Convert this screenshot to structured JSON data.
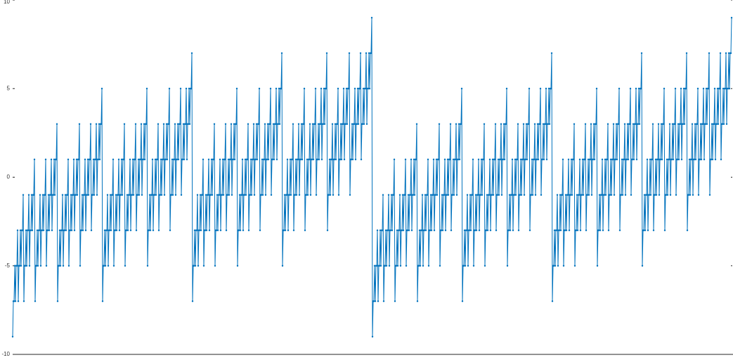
{
  "chart_data": {
    "type": "line",
    "color": "#0072bd",
    "markers": true,
    "xlim": [
      0,
      1023
    ],
    "ylim": [
      -10,
      10
    ],
    "yticks": [
      -10,
      -5,
      0,
      5,
      10
    ],
    "values": [
      -9,
      -7,
      -7,
      -5,
      -7,
      -5,
      -5,
      -3,
      -7,
      -5,
      -5,
      -3,
      -5,
      -3,
      -3,
      -1,
      -7,
      -5,
      -5,
      -3,
      -5,
      -3,
      -3,
      -1,
      -5,
      -3,
      -3,
      -1,
      -3,
      -1,
      -1,
      1,
      -7,
      -5,
      -5,
      -3,
      -5,
      -3,
      -3,
      -1,
      -5,
      -3,
      -3,
      -1,
      -3,
      -1,
      -1,
      1,
      -5,
      -3,
      -3,
      -1,
      -3,
      -1,
      -1,
      1,
      -3,
      -1,
      -1,
      1,
      -1,
      1,
      1,
      3,
      -7,
      -5,
      -5,
      -3,
      -5,
      -3,
      -3,
      -1,
      -5,
      -3,
      -3,
      -1,
      -3,
      -1,
      -1,
      1,
      -5,
      -3,
      -3,
      -1,
      -3,
      -1,
      -1,
      1,
      -3,
      -1,
      -1,
      1,
      -1,
      1,
      1,
      3,
      -5,
      -3,
      -3,
      -1,
      -3,
      -1,
      -1,
      1,
      -3,
      -1,
      -1,
      1,
      -1,
      1,
      1,
      3,
      -3,
      -1,
      -1,
      1,
      -1,
      1,
      1,
      3,
      -1,
      1,
      1,
      3,
      1,
      3,
      3,
      5,
      -7,
      -5,
      -5,
      -3,
      -5,
      -3,
      -3,
      -1,
      -5,
      -3,
      -3,
      -1,
      -3,
      -1,
      -1,
      1,
      -5,
      -3,
      -3,
      -1,
      -3,
      -1,
      -1,
      1,
      -3,
      -1,
      -1,
      1,
      -1,
      1,
      1,
      3,
      -5,
      -3,
      -3,
      -1,
      -3,
      -1,
      -1,
      1,
      -3,
      -1,
      -1,
      1,
      -1,
      1,
      1,
      3,
      -3,
      -1,
      -1,
      1,
      -1,
      1,
      1,
      3,
      -1,
      1,
      1,
      3,
      1,
      3,
      3,
      5,
      -5,
      -3,
      -3,
      -1,
      -3,
      -1,
      -1,
      1,
      -3,
      -1,
      -1,
      1,
      -1,
      1,
      1,
      3,
      -3,
      -1,
      -1,
      1,
      -1,
      1,
      1,
      3,
      -1,
      1,
      1,
      3,
      1,
      3,
      3,
      5,
      -3,
      -1,
      -1,
      1,
      -1,
      1,
      1,
      3,
      -1,
      1,
      1,
      3,
      1,
      3,
      3,
      5,
      -1,
      1,
      1,
      3,
      1,
      3,
      3,
      5,
      1,
      3,
      3,
      5,
      3,
      5,
      5,
      7,
      -7,
      -5,
      -5,
      -3,
      -5,
      -3,
      -3,
      -1,
      -5,
      -3,
      -3,
      -1,
      -3,
      -1,
      -1,
      1,
      -5,
      -3,
      -3,
      -1,
      -3,
      -1,
      -1,
      1,
      -3,
      -1,
      -1,
      1,
      -1,
      1,
      1,
      3,
      -5,
      -3,
      -3,
      -1,
      -3,
      -1,
      -1,
      1,
      -3,
      -1,
      -1,
      1,
      -1,
      1,
      1,
      3,
      -3,
      -1,
      -1,
      1,
      -1,
      1,
      1,
      3,
      -1,
      1,
      1,
      3,
      1,
      3,
      3,
      5,
      -5,
      -3,
      -3,
      -1,
      -3,
      -1,
      -1,
      1,
      -3,
      -1,
      -1,
      1,
      -1,
      1,
      1,
      3,
      -3,
      -1,
      -1,
      1,
      -1,
      1,
      1,
      3,
      -1,
      1,
      1,
      3,
      1,
      3,
      3,
      5,
      -3,
      -1,
      -1,
      1,
      -1,
      1,
      1,
      3,
      -1,
      1,
      1,
      3,
      1,
      3,
      3,
      5,
      -1,
      1,
      1,
      3,
      1,
      3,
      3,
      5,
      1,
      3,
      3,
      5,
      3,
      5,
      5,
      7,
      -5,
      -3,
      -3,
      -1,
      -3,
      -1,
      -1,
      1,
      -3,
      -1,
      -1,
      1,
      -1,
      1,
      1,
      3,
      -3,
      -1,
      -1,
      1,
      -1,
      1,
      1,
      3,
      -1,
      1,
      1,
      3,
      1,
      3,
      3,
      5,
      -3,
      -1,
      -1,
      1,
      -1,
      1,
      1,
      3,
      -1,
      1,
      1,
      3,
      1,
      3,
      3,
      5,
      -1,
      1,
      1,
      3,
      1,
      3,
      3,
      5,
      1,
      3,
      3,
      5,
      3,
      5,
      5,
      7,
      -3,
      -1,
      -1,
      1,
      -1,
      1,
      1,
      3,
      -1,
      1,
      1,
      3,
      1,
      3,
      3,
      5,
      -1,
      1,
      1,
      3,
      1,
      3,
      3,
      5,
      1,
      3,
      3,
      5,
      3,
      5,
      5,
      7,
      -1,
      1,
      1,
      3,
      1,
      3,
      3,
      5,
      1,
      3,
      3,
      5,
      3,
      5,
      5,
      7,
      1,
      3,
      3,
      5,
      3,
      5,
      5,
      7,
      3,
      5,
      5,
      7,
      5,
      7,
      7,
      9,
      -9,
      -7,
      -7,
      -5,
      -7,
      -5,
      -5,
      -3,
      -7,
      -5,
      -5,
      -3,
      -5,
      -3,
      -3,
      -1,
      -7,
      -5,
      -5,
      -3,
      -5,
      -3,
      -3,
      -1,
      -5,
      -3,
      -3,
      -1,
      -3,
      -1,
      -1,
      1,
      -7,
      -5,
      -5,
      -3,
      -5,
      -3,
      -3,
      -1,
      -5,
      -3,
      -3,
      -1,
      -3,
      -1,
      -1,
      1,
      -5,
      -3,
      -3,
      -1,
      -3,
      -1,
      -1,
      1,
      -3,
      -1,
      -1,
      1,
      -1,
      1,
      1,
      3,
      -7,
      -5,
      -5,
      -3,
      -5,
      -3,
      -3,
      -1,
      -5,
      -3,
      -3,
      -1,
      -3,
      -1,
      -1,
      1,
      -5,
      -3,
      -3,
      -1,
      -3,
      -1,
      -1,
      1,
      -3,
      -1,
      -1,
      1,
      -1,
      1,
      1,
      3,
      -5,
      -3,
      -3,
      -1,
      -3,
      -1,
      -1,
      1,
      -3,
      -1,
      -1,
      1,
      -1,
      1,
      1,
      3,
      -3,
      -1,
      -1,
      1,
      -1,
      1,
      1,
      3,
      -1,
      1,
      1,
      3,
      1,
      3,
      3,
      5,
      -7,
      -5,
      -5,
      -3,
      -5,
      -3,
      -3,
      -1,
      -5,
      -3,
      -3,
      -1,
      -3,
      -1,
      -1,
      1,
      -5,
      -3,
      -3,
      -1,
      -3,
      -1,
      -1,
      1,
      -3,
      -1,
      -1,
      1,
      -1,
      1,
      1,
      3,
      -5,
      -3,
      -3,
      -1,
      -3,
      -1,
      -1,
      1,
      -3,
      -1,
      -1,
      1,
      -1,
      1,
      1,
      3,
      -3,
      -1,
      -1,
      1,
      -1,
      1,
      1,
      3,
      -1,
      1,
      1,
      3,
      1,
      3,
      3,
      5,
      -5,
      -3,
      -3,
      -1,
      -3,
      -1,
      -1,
      1,
      -3,
      -1,
      -1,
      1,
      -1,
      1,
      1,
      3,
      -3,
      -1,
      -1,
      1,
      -1,
      1,
      1,
      3,
      -1,
      1,
      1,
      3,
      1,
      3,
      3,
      5,
      -3,
      -1,
      -1,
      1,
      -1,
      1,
      1,
      3,
      -1,
      1,
      1,
      3,
      1,
      3,
      3,
      5,
      -1,
      1,
      1,
      3,
      1,
      3,
      3,
      5,
      1,
      3,
      3,
      5,
      3,
      5,
      5,
      7,
      -7,
      -5,
      -5,
      -3,
      -5,
      -3,
      -3,
      -1,
      -5,
      -3,
      -3,
      -1,
      -3,
      -1,
      -1,
      1,
      -5,
      -3,
      -3,
      -1,
      -3,
      -1,
      -1,
      1,
      -3,
      -1,
      -1,
      1,
      -1,
      1,
      1,
      3,
      -5,
      -3,
      -3,
      -1,
      -3,
      -1,
      -1,
      1,
      -3,
      -1,
      -1,
      1,
      -1,
      1,
      1,
      3,
      -3,
      -1,
      -1,
      1,
      -1,
      1,
      1,
      3,
      -1,
      1,
      1,
      3,
      1,
      3,
      3,
      5,
      -5,
      -3,
      -3,
      -1,
      -3,
      -1,
      -1,
      1,
      -3,
      -1,
      -1,
      1,
      -1,
      1,
      1,
      3,
      -3,
      -1,
      -1,
      1,
      -1,
      1,
      1,
      3,
      -1,
      1,
      1,
      3,
      1,
      3,
      3,
      5,
      -3,
      -1,
      -1,
      1,
      -1,
      1,
      1,
      3,
      -1,
      1,
      1,
      3,
      1,
      3,
      3,
      5,
      -1,
      1,
      1,
      3,
      1,
      3,
      3,
      5,
      1,
      3,
      3,
      5,
      3,
      5,
      5,
      7,
      -5,
      -3,
      -3,
      -1,
      -3,
      -1,
      -1,
      1,
      -3,
      -1,
      -1,
      1,
      -1,
      1,
      1,
      3,
      -3,
      -1,
      -1,
      1,
      -1,
      1,
      1,
      3,
      -1,
      1,
      1,
      3,
      1,
      3,
      3,
      5,
      -3,
      -1,
      -1,
      1,
      -1,
      1,
      1,
      3,
      -1,
      1,
      1,
      3,
      1,
      3,
      3,
      5,
      -1,
      1,
      1,
      3,
      1,
      3,
      3,
      5,
      1,
      3,
      3,
      5,
      3,
      5,
      5,
      7,
      -3,
      -1,
      -1,
      1,
      -1,
      1,
      1,
      3,
      -1,
      1,
      1,
      3,
      1,
      3,
      3,
      5,
      -1,
      1,
      1,
      3,
      1,
      3,
      3,
      5,
      1,
      3,
      3,
      5,
      3,
      5,
      5,
      7,
      -1,
      1,
      1,
      3,
      1,
      3,
      3,
      5,
      1,
      3,
      3,
      5,
      3,
      5,
      5,
      7,
      1,
      3,
      3,
      5,
      3,
      5,
      5,
      7,
      3,
      5,
      5,
      7,
      5,
      7,
      7,
      9
    ]
  }
}
